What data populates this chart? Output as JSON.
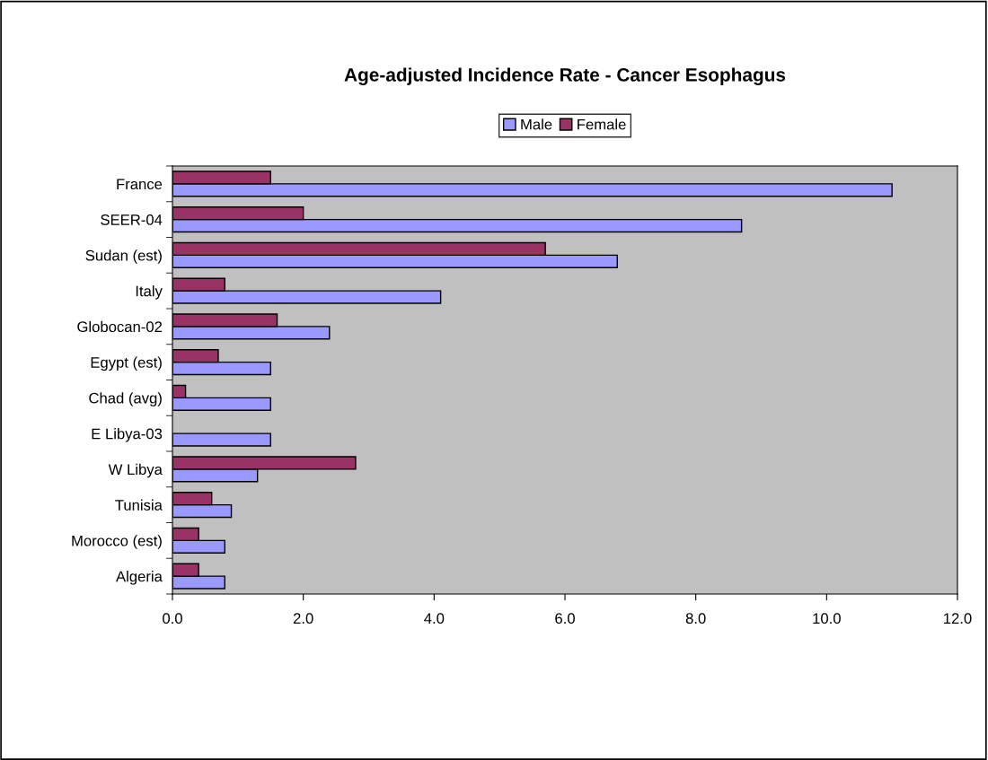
{
  "chart_data": {
    "type": "bar",
    "orientation": "horizontal",
    "title": "Age-adjusted Incidence Rate - Cancer Esophagus",
    "categories": [
      "France",
      "SEER-04",
      "Sudan (est)",
      "Italy",
      "Globocan-02",
      "Egypt (est)",
      "Chad (avg)",
      "E Libya-03",
      "W Libya",
      "Tunisia",
      "Morocco (est)",
      "Algeria"
    ],
    "series": [
      {
        "name": "Male",
        "color": "#9999ff",
        "values": [
          11.0,
          8.7,
          6.8,
          4.1,
          2.4,
          1.5,
          1.5,
          1.5,
          1.3,
          0.9,
          0.8,
          0.8
        ]
      },
      {
        "name": "Female",
        "color": "#993366",
        "values": [
          1.5,
          2.0,
          5.7,
          0.8,
          1.6,
          0.7,
          0.2,
          null,
          2.8,
          0.6,
          0.4,
          0.4
        ]
      }
    ],
    "xlim": [
      0,
      12
    ],
    "xticks": [
      {
        "value": 0,
        "label": "0.0"
      },
      {
        "value": 2,
        "label": "2.0"
      },
      {
        "value": 4,
        "label": "4.0"
      },
      {
        "value": 6,
        "label": "6.0"
      },
      {
        "value": 8,
        "label": "8.0"
      },
      {
        "value": 10,
        "label": "10.0"
      },
      {
        "value": 12,
        "label": "12.0"
      }
    ],
    "grid": false,
    "legend": "top"
  }
}
